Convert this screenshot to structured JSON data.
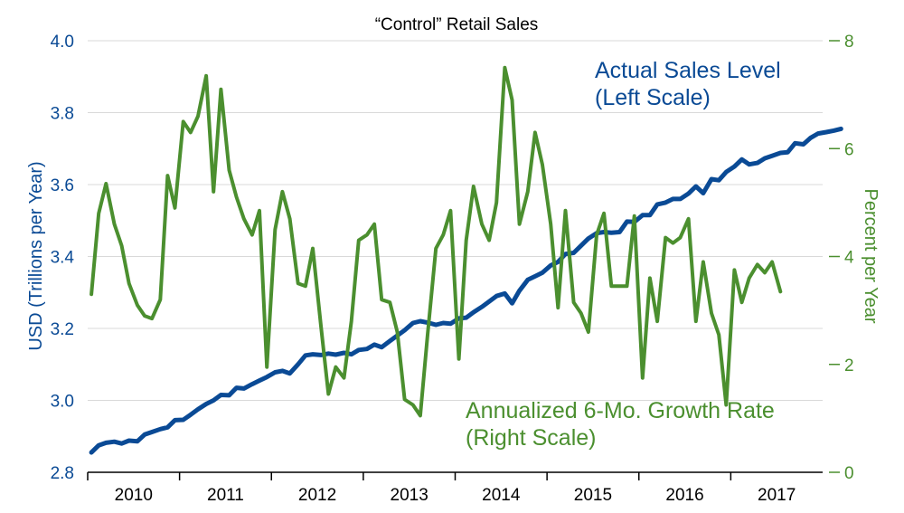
{
  "chart_data": {
    "type": "line",
    "title": "“Control” Retail Sales",
    "colors": {
      "sales": "#0a4a95",
      "growth": "#4b8f2f",
      "grid": "#d9d9d9",
      "axis": "#000000"
    },
    "left_axis": {
      "label": "USD (Trillions per Year)",
      "range": [
        2.8,
        4.0
      ],
      "ticks": [
        2.8,
        3.0,
        3.2,
        3.4,
        3.6,
        3.8,
        4.0
      ],
      "tick_labels": [
        "2.8",
        "3.0",
        "3.2",
        "3.4",
        "3.6",
        "3.8",
        "4.0"
      ]
    },
    "right_axis": {
      "label": "Percent per Year",
      "range": [
        0,
        8
      ],
      "ticks": [
        0,
        2,
        4,
        6,
        8
      ],
      "tick_labels": [
        "0",
        "2",
        "4",
        "6",
        "8"
      ]
    },
    "x_axis": {
      "range": [
        2009.5,
        2017.5
      ],
      "year_labels": [
        "2010",
        "2011",
        "2012",
        "2013",
        "2014",
        "2015",
        "2016",
        "2017"
      ],
      "year_positions": [
        2010.0,
        2011.0,
        2012.0,
        2013.0,
        2014.0,
        2015.0,
        2016.0,
        2017.0
      ],
      "boundary_ticks": [
        2009.5,
        2010.5,
        2011.5,
        2012.5,
        2013.5,
        2014.5,
        2015.5,
        2016.5
      ]
    },
    "annotations": {
      "sales": [
        "Actual Sales Level",
        "(Left Scale)"
      ],
      "growth": [
        "Annualized 6-Mo. Growth Rate",
        "(Right Scale)"
      ]
    },
    "series": [
      {
        "name": "Actual Sales Level",
        "axis": "left",
        "color": "#0a4a95",
        "points": [
          [
            2009.54,
            2.855
          ],
          [
            2009.62,
            2.875
          ],
          [
            2009.7,
            2.882
          ],
          [
            2009.79,
            2.885
          ],
          [
            2009.87,
            2.88
          ],
          [
            2009.95,
            2.888
          ],
          [
            2010.04,
            2.886
          ],
          [
            2010.12,
            2.905
          ],
          [
            2010.2,
            2.912
          ],
          [
            2010.29,
            2.92
          ],
          [
            2010.37,
            2.925
          ],
          [
            2010.45,
            2.945
          ],
          [
            2010.54,
            2.946
          ],
          [
            2010.62,
            2.96
          ],
          [
            2010.7,
            2.975
          ],
          [
            2010.79,
            2.99
          ],
          [
            2010.87,
            3.0
          ],
          [
            2010.95,
            3.015
          ],
          [
            2011.04,
            3.014
          ],
          [
            2011.12,
            3.035
          ],
          [
            2011.2,
            3.033
          ],
          [
            2011.29,
            3.045
          ],
          [
            2011.37,
            3.055
          ],
          [
            2011.45,
            3.065
          ],
          [
            2011.54,
            3.078
          ],
          [
            2011.62,
            3.082
          ],
          [
            2011.7,
            3.075
          ],
          [
            2011.79,
            3.1
          ],
          [
            2011.87,
            3.125
          ],
          [
            2011.95,
            3.128
          ],
          [
            2012.04,
            3.126
          ],
          [
            2012.12,
            3.13
          ],
          [
            2012.2,
            3.127
          ],
          [
            2012.29,
            3.132
          ],
          [
            2012.37,
            3.128
          ],
          [
            2012.45,
            3.14
          ],
          [
            2012.54,
            3.143
          ],
          [
            2012.62,
            3.155
          ],
          [
            2012.7,
            3.148
          ],
          [
            2012.79,
            3.165
          ],
          [
            2012.87,
            3.18
          ],
          [
            2012.95,
            3.195
          ],
          [
            2013.04,
            3.215
          ],
          [
            2013.12,
            3.22
          ],
          [
            2013.2,
            3.216
          ],
          [
            2013.29,
            3.21
          ],
          [
            2013.37,
            3.215
          ],
          [
            2013.45,
            3.213
          ],
          [
            2013.54,
            3.228
          ],
          [
            2013.62,
            3.23
          ],
          [
            2013.7,
            3.245
          ],
          [
            2013.79,
            3.26
          ],
          [
            2013.87,
            3.275
          ],
          [
            2013.95,
            3.29
          ],
          [
            2014.04,
            3.297
          ],
          [
            2014.12,
            3.27
          ],
          [
            2014.2,
            3.305
          ],
          [
            2014.29,
            3.335
          ],
          [
            2014.37,
            3.345
          ],
          [
            2014.45,
            3.355
          ],
          [
            2014.54,
            3.375
          ],
          [
            2014.62,
            3.385
          ],
          [
            2014.7,
            3.407
          ],
          [
            2014.79,
            3.41
          ],
          [
            2014.87,
            3.43
          ],
          [
            2014.95,
            3.45
          ],
          [
            2015.04,
            3.465
          ],
          [
            2015.12,
            3.468
          ],
          [
            2015.2,
            3.466
          ],
          [
            2015.29,
            3.468
          ],
          [
            2015.37,
            3.497
          ],
          [
            2015.45,
            3.496
          ],
          [
            2015.54,
            3.515
          ],
          [
            2015.62,
            3.515
          ],
          [
            2015.7,
            3.545
          ],
          [
            2015.79,
            3.55
          ],
          [
            2015.87,
            3.56
          ],
          [
            2015.95,
            3.56
          ],
          [
            2016.04,
            3.575
          ],
          [
            2016.12,
            3.595
          ],
          [
            2016.2,
            3.576
          ],
          [
            2016.29,
            3.615
          ],
          [
            2016.37,
            3.612
          ],
          [
            2016.45,
            3.635
          ],
          [
            2016.54,
            3.65
          ],
          [
            2016.62,
            3.67
          ],
          [
            2016.7,
            3.656
          ],
          [
            2016.79,
            3.66
          ],
          [
            2016.87,
            3.673
          ],
          [
            2016.95,
            3.68
          ],
          [
            2017.04,
            3.688
          ],
          [
            2017.12,
            3.69
          ],
          [
            2017.2,
            3.715
          ],
          [
            2017.29,
            3.712
          ],
          [
            2017.37,
            3.73
          ],
          [
            2017.45,
            3.742
          ],
          [
            2017.54,
            3.746
          ],
          [
            2017.62,
            3.75
          ],
          [
            2017.7,
            3.755
          ]
        ]
      },
      {
        "name": "Annualized 6-Mo. Growth Rate",
        "axis": "right",
        "color": "#4b8f2f",
        "points": [
          [
            2009.54,
            3.3
          ],
          [
            2009.62,
            4.8
          ],
          [
            2009.7,
            5.35
          ],
          [
            2009.79,
            4.6
          ],
          [
            2009.87,
            4.2
          ],
          [
            2009.95,
            3.5
          ],
          [
            2010.04,
            3.1
          ],
          [
            2010.12,
            2.9
          ],
          [
            2010.2,
            2.85
          ],
          [
            2010.29,
            3.2
          ],
          [
            2010.37,
            5.5
          ],
          [
            2010.45,
            4.9
          ],
          [
            2010.54,
            6.5
          ],
          [
            2010.62,
            6.3
          ],
          [
            2010.7,
            6.6
          ],
          [
            2010.79,
            7.35
          ],
          [
            2010.87,
            5.2
          ],
          [
            2010.95,
            7.1
          ],
          [
            2011.04,
            5.6
          ],
          [
            2011.12,
            5.1
          ],
          [
            2011.2,
            4.7
          ],
          [
            2011.29,
            4.4
          ],
          [
            2011.37,
            4.85
          ],
          [
            2011.45,
            1.95
          ],
          [
            2011.54,
            4.5
          ],
          [
            2011.62,
            5.2
          ],
          [
            2011.7,
            4.7
          ],
          [
            2011.79,
            3.5
          ],
          [
            2011.87,
            3.45
          ],
          [
            2011.95,
            4.15
          ],
          [
            2012.04,
            2.7
          ],
          [
            2012.12,
            1.45
          ],
          [
            2012.2,
            1.95
          ],
          [
            2012.29,
            1.75
          ],
          [
            2012.37,
            2.8
          ],
          [
            2012.45,
            4.3
          ],
          [
            2012.54,
            4.4
          ],
          [
            2012.62,
            4.6
          ],
          [
            2012.7,
            3.2
          ],
          [
            2012.79,
            3.15
          ],
          [
            2012.87,
            2.6
          ],
          [
            2012.95,
            1.35
          ],
          [
            2013.04,
            1.25
          ],
          [
            2013.12,
            1.05
          ],
          [
            2013.2,
            2.55
          ],
          [
            2013.29,
            4.15
          ],
          [
            2013.37,
            4.4
          ],
          [
            2013.45,
            4.85
          ],
          [
            2013.54,
            2.1
          ],
          [
            2013.62,
            4.3
          ],
          [
            2013.7,
            5.3
          ],
          [
            2013.79,
            4.6
          ],
          [
            2013.87,
            4.3
          ],
          [
            2013.95,
            5.0
          ],
          [
            2014.04,
            7.5
          ],
          [
            2014.12,
            6.9
          ],
          [
            2014.2,
            4.6
          ],
          [
            2014.29,
            5.2
          ],
          [
            2014.37,
            6.3
          ],
          [
            2014.45,
            5.7
          ],
          [
            2014.54,
            4.6
          ],
          [
            2014.62,
            3.05
          ],
          [
            2014.7,
            4.85
          ],
          [
            2014.79,
            3.15
          ],
          [
            2014.87,
            2.95
          ],
          [
            2014.95,
            2.6
          ],
          [
            2015.04,
            4.4
          ],
          [
            2015.12,
            4.8
          ],
          [
            2015.2,
            3.45
          ],
          [
            2015.29,
            3.45
          ],
          [
            2015.37,
            3.45
          ],
          [
            2015.45,
            4.75
          ],
          [
            2015.54,
            1.75
          ],
          [
            2015.62,
            3.6
          ],
          [
            2015.7,
            2.8
          ],
          [
            2015.79,
            4.35
          ],
          [
            2015.87,
            4.25
          ],
          [
            2015.95,
            4.35
          ],
          [
            2016.04,
            4.7
          ],
          [
            2016.12,
            2.8
          ],
          [
            2016.2,
            3.9
          ],
          [
            2016.29,
            2.95
          ],
          [
            2016.37,
            2.55
          ],
          [
            2016.45,
            1.25
          ],
          [
            2016.54,
            3.75
          ],
          [
            2016.62,
            3.15
          ],
          [
            2016.7,
            3.6
          ],
          [
            2016.79,
            3.85
          ],
          [
            2016.87,
            3.7
          ],
          [
            2016.95,
            3.9
          ],
          [
            2017.04,
            3.35
          ]
        ]
      }
    ]
  }
}
